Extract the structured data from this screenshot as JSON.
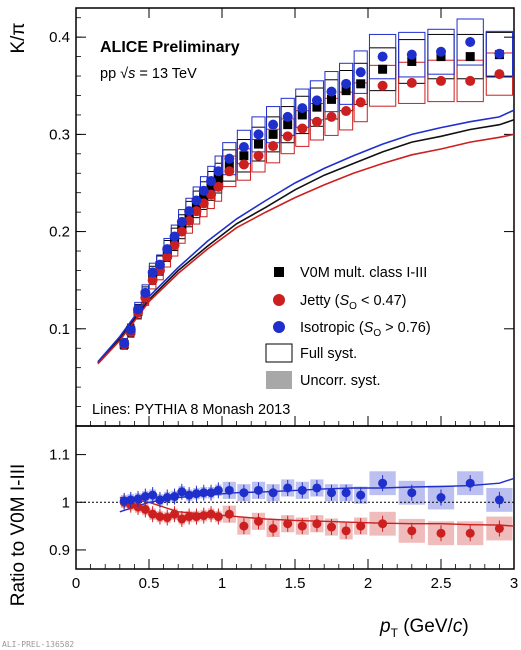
{
  "chart_data": [
    {
      "type": "scatter",
      "panel": "top",
      "ylabel": "K/π",
      "ylim": [
        0,
        0.43
      ],
      "yticks": [
        "0.1",
        "0.2",
        "0.3",
        "0.4"
      ],
      "xlim": [
        0,
        3
      ],
      "title": "ALICE Preliminary",
      "subtitle_pre": "pp ",
      "subtitle_sqrt": "√",
      "subtitle_s": "s",
      "subtitle_post": " = 13 TeV",
      "footnote": "Lines: PYTHIA 8 Monash 2013",
      "legend": {
        "v0m": "V0M mult. class I-III",
        "jetty_pre": "Jetty (",
        "jetty_S": "S",
        "jetty_sub": "O",
        "jetty_post": " < 0.47)",
        "iso_pre": "Isotropic (",
        "iso_S": "S",
        "iso_sub": "O",
        "iso_post": " > 0.76)",
        "full": "Full syst.",
        "uncorr": "Uncorr. syst."
      },
      "x": [
        0.33,
        0.375,
        0.425,
        0.475,
        0.525,
        0.575,
        0.625,
        0.675,
        0.725,
        0.775,
        0.825,
        0.875,
        0.925,
        0.975,
        1.05,
        1.15,
        1.25,
        1.35,
        1.45,
        1.55,
        1.65,
        1.75,
        1.85,
        1.95,
        2.1,
        2.3,
        2.5,
        2.7,
        2.9
      ],
      "series": [
        {
          "name": "V0M mult. class I-III",
          "marker": "square",
          "color": "#000000",
          "values": [
            0.084,
            0.098,
            0.118,
            0.135,
            0.155,
            0.165,
            0.18,
            0.192,
            0.205,
            0.218,
            0.228,
            0.237,
            0.247,
            0.255,
            0.268,
            0.278,
            0.29,
            0.3,
            0.31,
            0.32,
            0.328,
            0.336,
            0.345,
            0.352,
            0.367,
            0.375,
            0.38,
            0.38,
            0.382
          ]
        },
        {
          "name": "Jetty (S_O < 0.47)",
          "marker": "circle",
          "color": "#cc1f1f",
          "values": [
            0.084,
            0.097,
            0.117,
            0.132,
            0.15,
            0.16,
            0.174,
            0.186,
            0.2,
            0.211,
            0.221,
            0.229,
            0.238,
            0.246,
            0.262,
            0.269,
            0.278,
            0.288,
            0.298,
            0.306,
            0.313,
            0.318,
            0.324,
            0.333,
            0.35,
            0.353,
            0.355,
            0.355,
            0.362
          ]
        },
        {
          "name": "Isotropic (S_O > 0.76)",
          "marker": "circle",
          "color": "#1f2fcc",
          "values": [
            0.085,
            0.099,
            0.12,
            0.137,
            0.158,
            0.166,
            0.182,
            0.195,
            0.21,
            0.221,
            0.232,
            0.242,
            0.252,
            0.262,
            0.275,
            0.287,
            0.3,
            0.31,
            0.318,
            0.327,
            0.335,
            0.344,
            0.352,
            0.364,
            0.38,
            0.382,
            0.385,
            0.395,
            0.383
          ]
        }
      ],
      "pythia_lines": [
        {
          "name": "V0M",
          "color": "#111111",
          "x": [
            0.15,
            0.3,
            0.5,
            0.7,
            0.9,
            1.1,
            1.3,
            1.5,
            1.7,
            1.9,
            2.1,
            2.3,
            2.5,
            2.7,
            2.9,
            3.0
          ],
          "values": [
            0.065,
            0.09,
            0.13,
            0.16,
            0.185,
            0.208,
            0.225,
            0.243,
            0.258,
            0.27,
            0.282,
            0.292,
            0.298,
            0.305,
            0.31,
            0.315
          ]
        },
        {
          "name": "Jetty",
          "color": "#cc1f1f",
          "x": [
            0.15,
            0.3,
            0.5,
            0.7,
            0.9,
            1.1,
            1.3,
            1.5,
            1.7,
            1.9,
            2.1,
            2.3,
            2.5,
            2.7,
            2.9,
            3.0
          ],
          "values": [
            0.064,
            0.088,
            0.128,
            0.157,
            0.182,
            0.204,
            0.22,
            0.235,
            0.248,
            0.26,
            0.27,
            0.279,
            0.285,
            0.292,
            0.297,
            0.3
          ]
        },
        {
          "name": "Isotropic",
          "color": "#1f2fcc",
          "x": [
            0.15,
            0.3,
            0.5,
            0.7,
            0.9,
            1.1,
            1.3,
            1.5,
            1.7,
            1.9,
            2.1,
            2.3,
            2.5,
            2.7,
            2.9,
            3.0
          ],
          "values": [
            0.066,
            0.092,
            0.133,
            0.163,
            0.19,
            0.213,
            0.232,
            0.25,
            0.265,
            0.278,
            0.29,
            0.3,
            0.307,
            0.313,
            0.318,
            0.325
          ]
        }
      ]
    },
    {
      "type": "scatter",
      "panel": "bottom",
      "ylabel": "Ratio to V0M I-III",
      "ylim": [
        0.86,
        1.16
      ],
      "yticks": [
        "0.9",
        "1",
        "1.1"
      ],
      "xlim": [
        0,
        3
      ],
      "xticks": [
        "0",
        "0.5",
        "1",
        "1.5",
        "2",
        "2.5",
        "3"
      ],
      "xlabel_p": "p",
      "xlabel_sub": "T",
      "xlabel_post_a": " (GeV/",
      "xlabel_c": "c",
      "xlabel_post_b": ")",
      "reference_line": 1.0,
      "x": [
        0.33,
        0.375,
        0.425,
        0.475,
        0.525,
        0.575,
        0.625,
        0.675,
        0.725,
        0.775,
        0.825,
        0.875,
        0.925,
        0.975,
        1.05,
        1.15,
        1.25,
        1.35,
        1.45,
        1.55,
        1.65,
        1.75,
        1.85,
        1.95,
        2.1,
        2.3,
        2.5,
        2.7,
        2.9
      ],
      "series": [
        {
          "name": "Jetty / V0M",
          "color": "#cc1f1f",
          "values": [
            1.0,
            0.995,
            0.99,
            0.985,
            0.975,
            0.97,
            0.968,
            0.975,
            0.965,
            0.97,
            0.97,
            0.972,
            0.975,
            0.97,
            0.975,
            0.95,
            0.96,
            0.945,
            0.955,
            0.95,
            0.955,
            0.948,
            0.94,
            0.95,
            0.955,
            0.94,
            0.935,
            0.935,
            0.945
          ]
        },
        {
          "name": "Isotropic / V0M",
          "color": "#1f2fcc",
          "values": [
            1.003,
            1.005,
            1.007,
            1.012,
            1.015,
            1.005,
            1.01,
            1.012,
            1.022,
            1.015,
            1.018,
            1.02,
            1.02,
            1.025,
            1.025,
            1.02,
            1.025,
            1.02,
            1.03,
            1.025,
            1.03,
            1.02,
            1.02,
            1.015,
            1.04,
            1.02,
            1.01,
            1.04,
            1.005
          ]
        }
      ],
      "pythia_lines": [
        {
          "name": "Jetty ratio",
          "color": "#cc1f1f",
          "x": [
            0.3,
            0.5,
            0.7,
            0.9,
            1.1,
            1.3,
            1.5,
            1.7,
            1.9,
            2.1,
            2.3,
            2.5,
            2.7,
            2.9,
            3.0
          ],
          "values": [
            1.01,
            1.0,
            0.98,
            0.975,
            0.97,
            0.965,
            0.962,
            0.96,
            0.958,
            0.956,
            0.955,
            0.955,
            0.953,
            0.952,
            0.95
          ]
        },
        {
          "name": "Isotropic ratio",
          "color": "#1f2fcc",
          "x": [
            0.3,
            0.5,
            0.7,
            0.9,
            1.1,
            1.3,
            1.5,
            1.7,
            1.9,
            2.1,
            2.3,
            2.5,
            2.7,
            2.9,
            3.0
          ],
          "values": [
            0.98,
            1.0,
            1.01,
            1.015,
            1.02,
            1.022,
            1.025,
            1.028,
            1.03,
            1.03,
            1.032,
            1.033,
            1.035,
            1.04,
            1.05
          ]
        }
      ]
    }
  ],
  "watermark": "ALI-PREL-136582"
}
